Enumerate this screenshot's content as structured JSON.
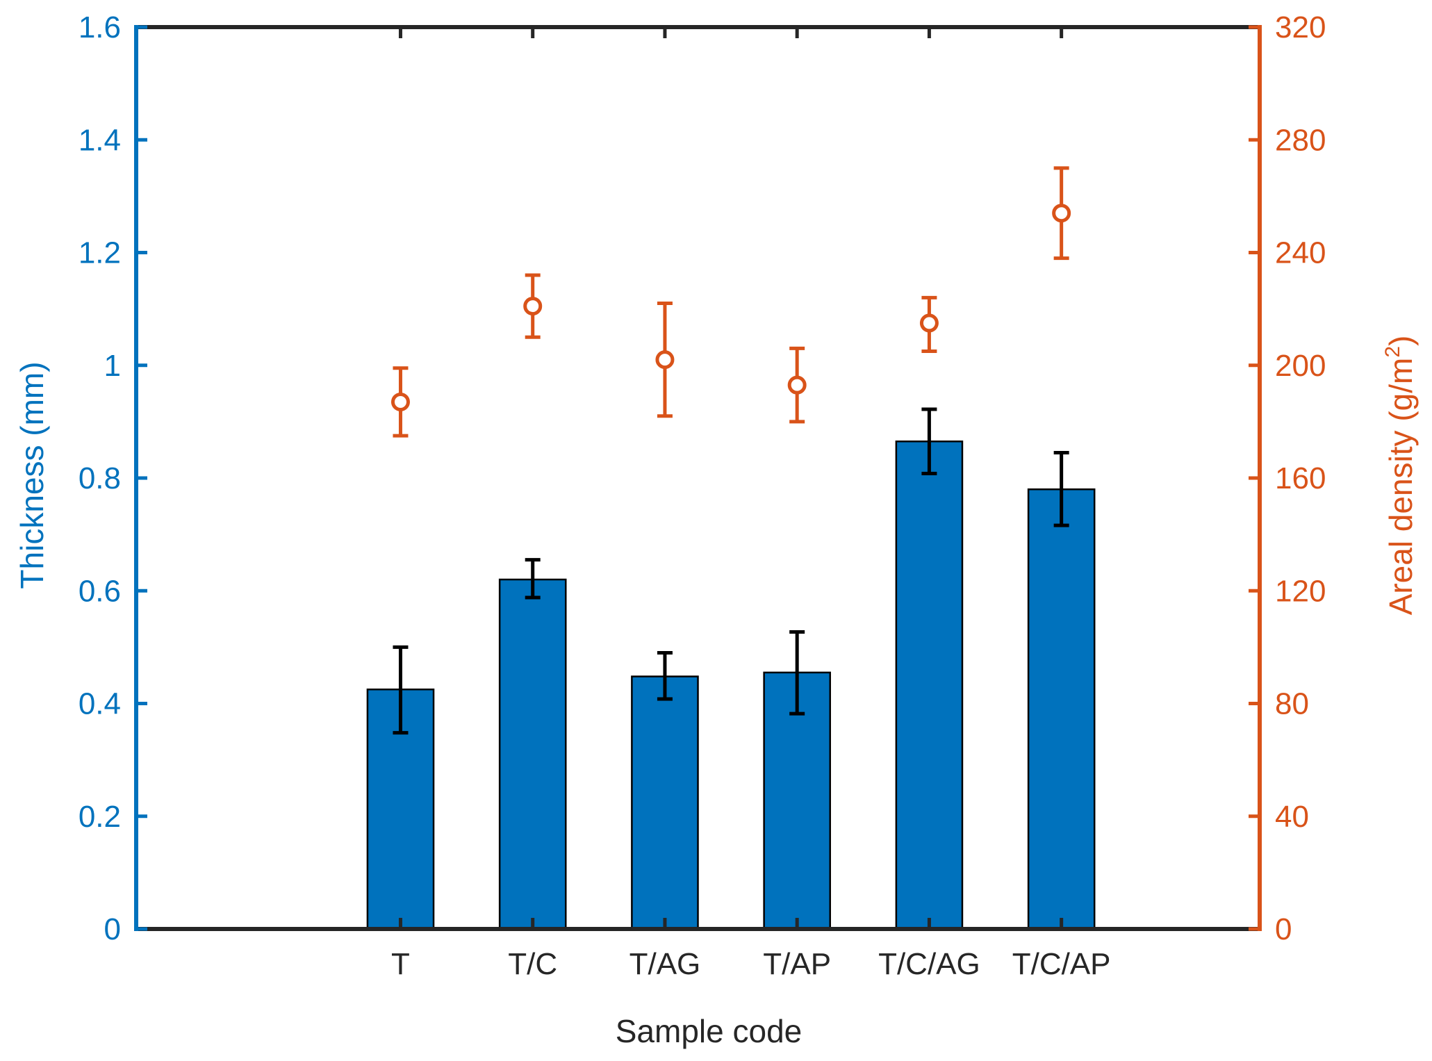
{
  "chart_data": {
    "type": "bar",
    "title": "",
    "xlabel": "Sample code",
    "ylabel_left": "Thickness (mm)",
    "ylabel_right": "Areal density (g/m",
    "ylabel_right_sup": "2",
    "ylabel_right_close": ")",
    "categories": [
      "T",
      "T/C",
      "T/AG",
      "T/AP",
      "T/C/AG",
      "T/C/AP"
    ],
    "left_axis": {
      "ylim": [
        0,
        1.6
      ],
      "ticks": [
        "0",
        "0.2",
        "0.4",
        "0.6",
        "0.8",
        "1",
        "1.2",
        "1.4",
        "1.6"
      ],
      "tick_values": [
        0,
        0.2,
        0.4,
        0.6,
        0.8,
        1.0,
        1.2,
        1.4,
        1.6
      ]
    },
    "right_axis": {
      "ylim": [
        0,
        320
      ],
      "ticks": [
        "0",
        "40",
        "80",
        "120",
        "160",
        "200",
        "240",
        "280",
        "320"
      ],
      "tick_values": [
        0,
        40,
        80,
        120,
        160,
        200,
        240,
        280,
        320
      ]
    },
    "series": [
      {
        "name": "Thickness",
        "kind": "bar",
        "axis": "left",
        "values": [
          0.425,
          0.62,
          0.448,
          0.455,
          0.865,
          0.78
        ],
        "err_low": [
          0.348,
          0.588,
          0.408,
          0.382,
          0.808,
          0.716
        ],
        "err_high": [
          0.5,
          0.655,
          0.49,
          0.527,
          0.922,
          0.845
        ]
      },
      {
        "name": "Areal density",
        "kind": "errorbar-marker",
        "axis": "right",
        "values": [
          187,
          221,
          202,
          193,
          215,
          254
        ],
        "err_low": [
          175,
          210,
          182,
          180,
          205,
          238
        ],
        "err_high": [
          199,
          232,
          222,
          206,
          224,
          270
        ]
      }
    ],
    "colors": {
      "bar": "#0072BD",
      "left_axis": "#0072BD",
      "right_axis": "#D95319",
      "frame": "#262626",
      "errorbar_bar": "#000000",
      "marker": "#D95319"
    },
    "grid": false,
    "legend": "none"
  }
}
